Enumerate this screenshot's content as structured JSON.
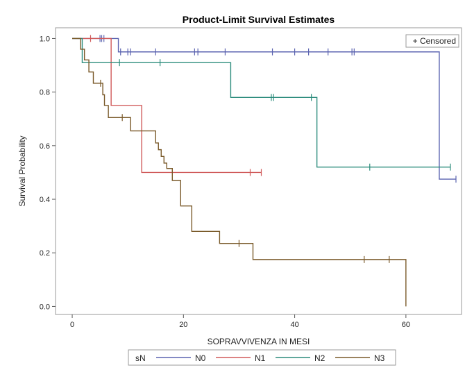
{
  "chart_data": {
    "type": "line",
    "title": "Product-Limit Survival Estimates",
    "xlabel": "SOPRAVVIVENZA IN MESI",
    "ylabel": "Survival Probability",
    "xlim": [
      -3,
      70
    ],
    "ylim": [
      -0.03,
      1.04
    ],
    "xticks": [
      0,
      20,
      40,
      60
    ],
    "yticks": [
      0.0,
      0.2,
      0.4,
      0.6,
      0.8,
      1.0
    ],
    "censored_label": "+ Censored",
    "legend_title": "sN",
    "legend_position": "bottom",
    "grid": false,
    "series": [
      {
        "name": "N0",
        "color": "#5B63B0",
        "steps": [
          [
            0,
            1.0
          ],
          [
            8.3,
            0.95
          ],
          [
            66,
            0.475
          ],
          [
            69,
            0.475
          ]
        ],
        "censored": [
          [
            5.0,
            1.0
          ],
          [
            5.3,
            1.0
          ],
          [
            5.7,
            1.0
          ],
          [
            8.7,
            0.95
          ],
          [
            10,
            0.95
          ],
          [
            10.5,
            0.95
          ],
          [
            15,
            0.95
          ],
          [
            22,
            0.95
          ],
          [
            22.6,
            0.95
          ],
          [
            27.5,
            0.95
          ],
          [
            36,
            0.95
          ],
          [
            40,
            0.95
          ],
          [
            42.5,
            0.95
          ],
          [
            46,
            0.95
          ],
          [
            50.3,
            0.95
          ],
          [
            50.7,
            0.95
          ],
          [
            69,
            0.475
          ]
        ]
      },
      {
        "name": "N1",
        "color": "#D05A5A",
        "steps": [
          [
            0,
            1.0
          ],
          [
            7.0,
            0.75
          ],
          [
            12.5,
            0.5
          ],
          [
            34,
            0.5
          ]
        ],
        "censored": [
          [
            3.3,
            1.0
          ],
          [
            32,
            0.5
          ],
          [
            34,
            0.5
          ]
        ]
      },
      {
        "name": "N2",
        "color": "#2C8C7C",
        "steps": [
          [
            0,
            1.0
          ],
          [
            1.8,
            0.91
          ],
          [
            28.5,
            0.78
          ],
          [
            44,
            0.52
          ],
          [
            68,
            0.52
          ]
        ],
        "censored": [
          [
            8.5,
            0.91
          ],
          [
            15.8,
            0.91
          ],
          [
            35.8,
            0.78
          ],
          [
            36.2,
            0.78
          ],
          [
            43,
            0.78
          ],
          [
            53.5,
            0.52
          ],
          [
            68,
            0.52
          ]
        ]
      },
      {
        "name": "N3",
        "color": "#7A5A2A",
        "steps": [
          [
            0,
            1.0
          ],
          [
            1.5,
            0.96
          ],
          [
            2.2,
            0.92
          ],
          [
            3.0,
            0.875
          ],
          [
            3.8,
            0.833
          ],
          [
            5.5,
            0.79
          ],
          [
            5.8,
            0.75
          ],
          [
            6.5,
            0.705
          ],
          [
            10.5,
            0.655
          ],
          [
            15.0,
            0.61
          ],
          [
            15.5,
            0.585
          ],
          [
            16.0,
            0.56
          ],
          [
            16.5,
            0.535
          ],
          [
            17.0,
            0.515
          ],
          [
            18.0,
            0.47
          ],
          [
            19.5,
            0.375
          ],
          [
            21.5,
            0.28
          ],
          [
            26.5,
            0.235
          ],
          [
            32.5,
            0.175
          ],
          [
            60,
            0.175
          ],
          [
            60,
            0.0
          ]
        ],
        "censored": [
          [
            5.1,
            0.833
          ],
          [
            9.0,
            0.705
          ],
          [
            30,
            0.235
          ],
          [
            52.5,
            0.175
          ],
          [
            57,
            0.175
          ]
        ]
      }
    ]
  }
}
